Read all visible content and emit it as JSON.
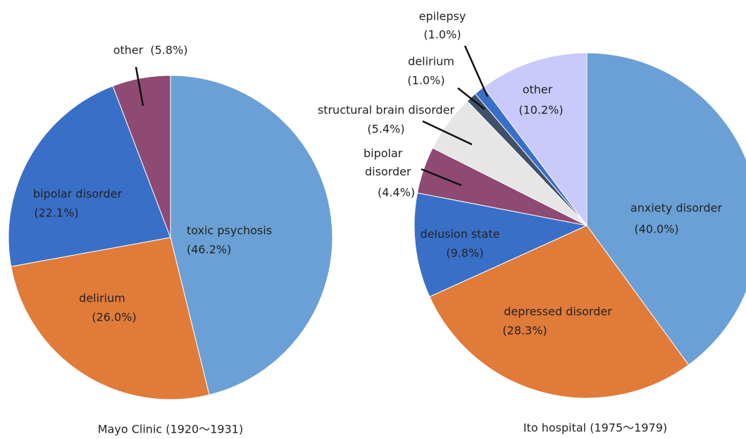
{
  "chart_data": [
    {
      "type": "pie",
      "title": "Mayo Clinic (1920〜1931)",
      "categories": [
        "toxic psychosis",
        "delirium",
        "bipolar disorder",
        "other"
      ],
      "values": [
        46.2,
        26.0,
        22.1,
        5.8
      ],
      "value_labels": [
        "(46.2%)",
        "(26.0%)",
        "(22.1%)",
        "(5.8%)"
      ],
      "colors": [
        "#6aa0d5",
        "#e07b39",
        "#3a6fc8",
        "#8e4a72"
      ]
    },
    {
      "type": "pie",
      "title": "Ito hospital (1975〜1979)",
      "categories": [
        "anxiety disorder",
        "depressed disorder",
        "delusion state",
        "bipolar disorder",
        "structural brain disorder",
        "delirium",
        "epilepsy",
        "other"
      ],
      "values": [
        40.0,
        28.3,
        9.8,
        4.4,
        5.4,
        1.0,
        1.0,
        10.2
      ],
      "value_labels": [
        "(40.0%)",
        "(28.3%)",
        "(9.8%)",
        "(4.4%)",
        "(5.4%)",
        "(1.0%)",
        "(1.0%)",
        "(10.2%)"
      ],
      "colors": [
        "#6aa0d5",
        "#e07b39",
        "#3a6fc8",
        "#8e4a72",
        "#e6e6e6",
        "#3f5068",
        "#3a6fc8",
        "#c9c9fb"
      ]
    }
  ]
}
